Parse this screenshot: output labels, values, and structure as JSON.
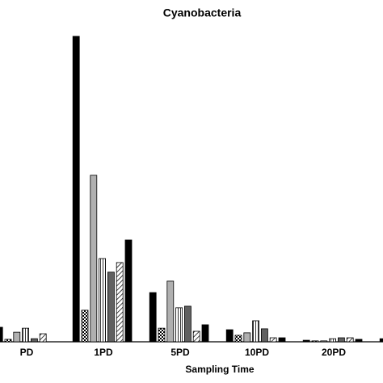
{
  "chart_data": {
    "type": "bar",
    "title": "Cyanobacteria",
    "x_label": "Sampling Time",
    "categories": [
      "PD",
      "1PD",
      "5PD",
      "10PD",
      "20PD",
      null
    ],
    "series": [
      {
        "color": "#000000",
        "values": [
          4.7,
          98.7,
          15.9,
          3.9,
          0.5,
          1.0
        ]
      },
      {
        "color": "#ffffff",
        "pattern": "checker",
        "values": [
          0.8,
          10.2,
          4.4,
          2.1,
          0.3,
          null
        ]
      },
      {
        "color": "#b0b0b0",
        "values": [
          3.1,
          53.8,
          19.6,
          2.9,
          0.3,
          null
        ]
      },
      {
        "color": "#ffffff",
        "pattern": "vertical",
        "values": [
          4.4,
          26.9,
          11.0,
          6.8,
          1.0,
          null
        ]
      },
      {
        "color": "#606060",
        "values": [
          1.0,
          22.5,
          11.5,
          4.2,
          1.3,
          null
        ]
      },
      {
        "color": "#ffffff",
        "pattern": "diagonal",
        "values": [
          2.6,
          25.6,
          3.4,
          1.3,
          1.3,
          null
        ]
      },
      {
        "color": "#000000",
        "values": [
          0,
          32.9,
          5.5,
          1.3,
          0.8,
          null
        ]
      }
    ],
    "ylim": [
      0,
      100
    ]
  }
}
